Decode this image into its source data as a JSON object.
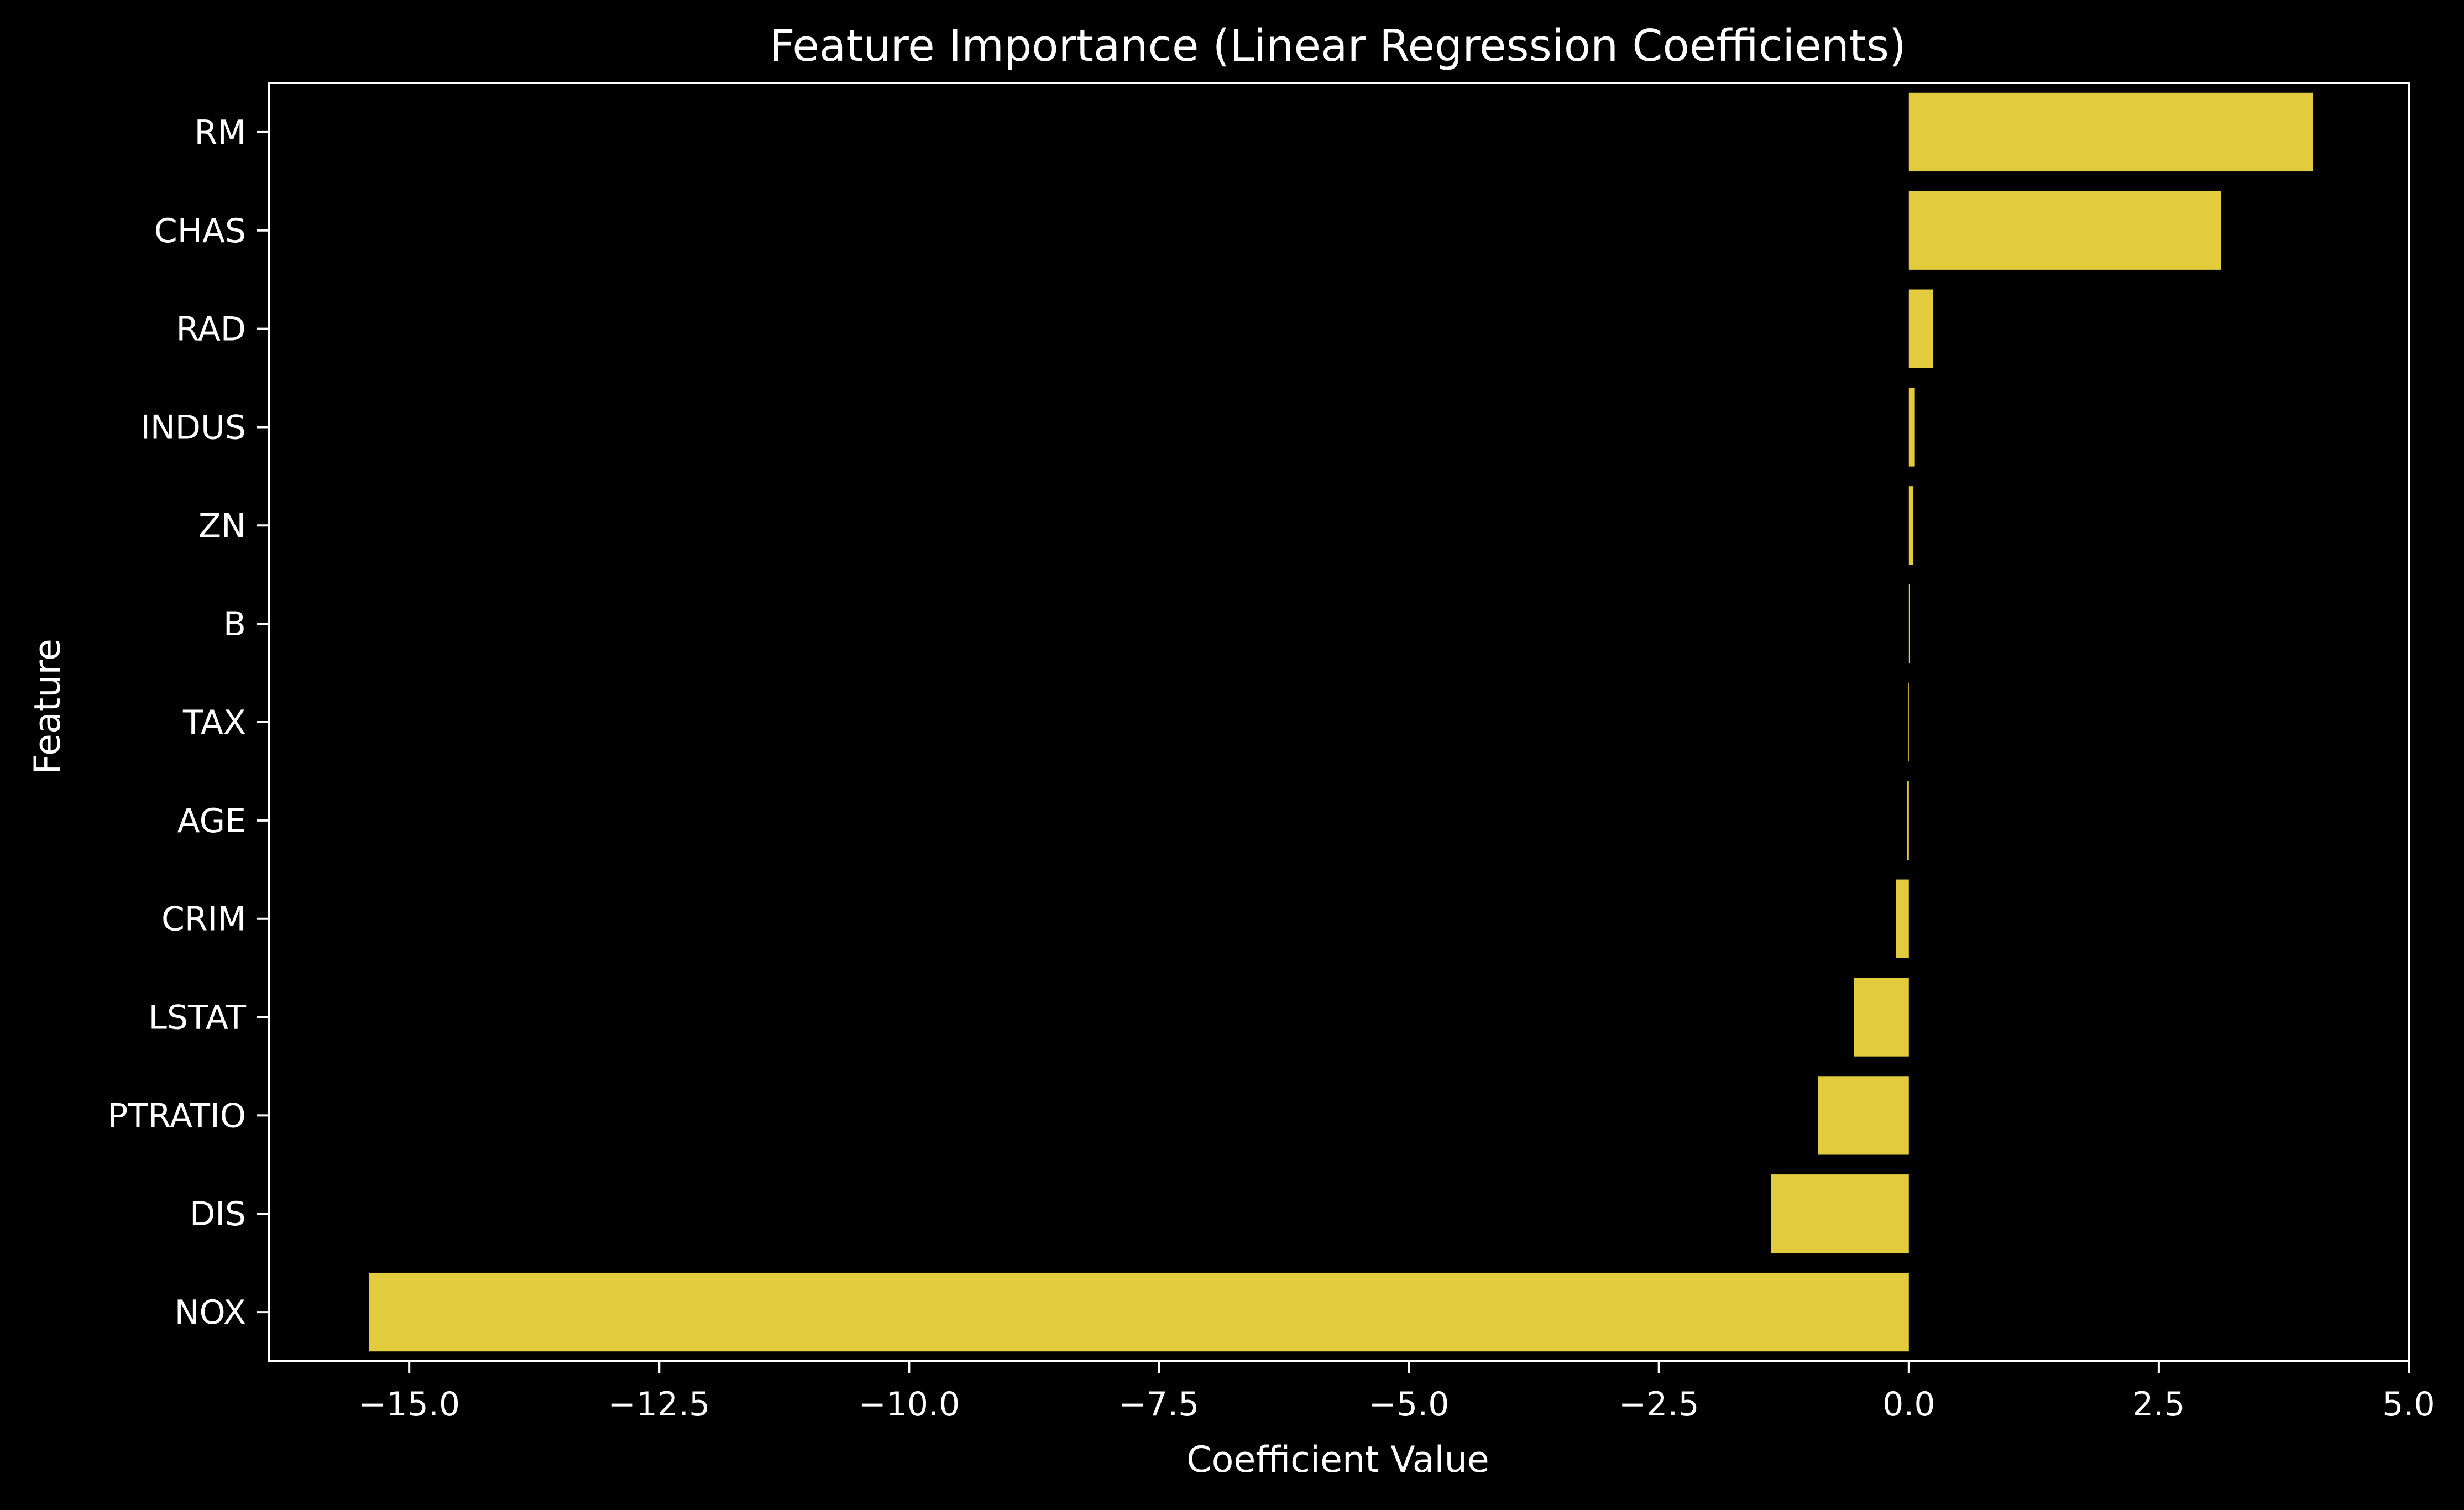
{
  "chart_data": {
    "type": "bar",
    "orientation": "horizontal",
    "title": "Feature Importance (Linear Regression Coefficients)",
    "xlabel": "Coefficient Value",
    "ylabel": "Feature",
    "categories": [
      "RM",
      "CHAS",
      "RAD",
      "INDUS",
      "ZN",
      "B",
      "TAX",
      "AGE",
      "CRIM",
      "LSTAT",
      "PTRATIO",
      "DIS",
      "NOX"
    ],
    "values": [
      4.04,
      3.12,
      0.24,
      0.06,
      0.04,
      0.01,
      -0.01,
      -0.02,
      -0.13,
      -0.55,
      -0.91,
      -1.38,
      -15.4
    ],
    "xlim": [
      -16.4,
      5.0
    ],
    "xticks": [
      -15.0,
      -12.5,
      -10.0,
      -7.5,
      -5.0,
      -2.5,
      0.0,
      2.5,
      5.0
    ],
    "xtick_labels": [
      "−15.0",
      "−12.5",
      "−10.0",
      "−7.5",
      "−5.0",
      "−2.5",
      "0.0",
      "2.5",
      "5.0"
    ],
    "grid": false,
    "legend": "none",
    "colors": {
      "bar": "#e3cb3e",
      "background": "#000000",
      "foreground": "#ffffff"
    }
  }
}
